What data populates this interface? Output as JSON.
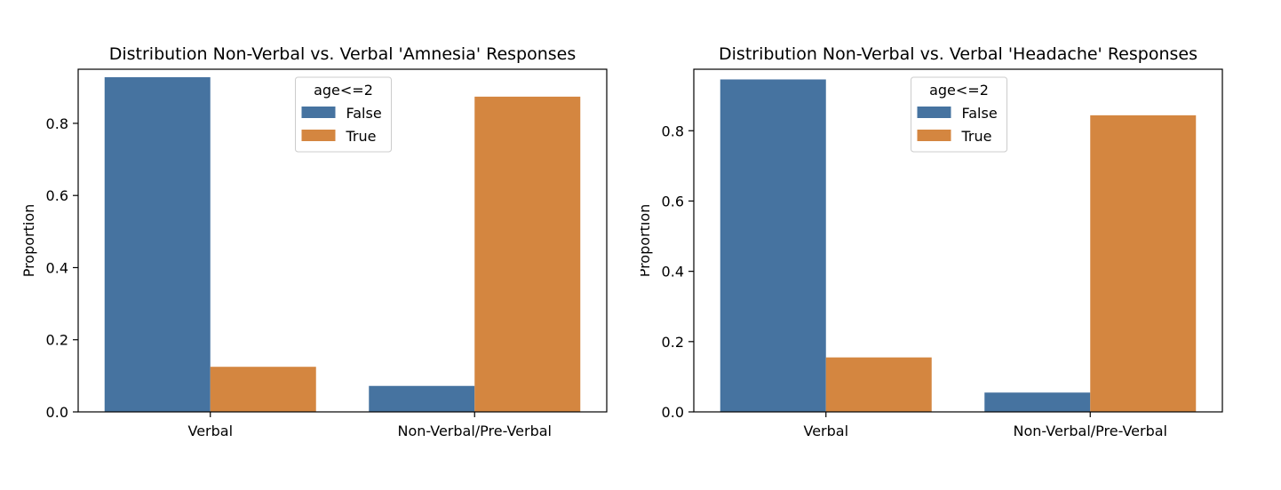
{
  "colors": {
    "false": "#4673a0",
    "true": "#d48640"
  },
  "chart_data": [
    {
      "type": "bar",
      "title": "Distribution Non-Verbal vs. Verbal 'Amnesia' Responses",
      "xlabel": "",
      "ylabel": "Proportion",
      "ylim": [
        0,
        0.95
      ],
      "yticks": [
        "0.0",
        "0.2",
        "0.4",
        "0.6",
        "0.8"
      ],
      "categories": [
        "Verbal",
        "Non-Verbal/Pre-Verbal"
      ],
      "legend": {
        "title": "age<=2",
        "placement": "upper-center"
      },
      "series": [
        {
          "name": "False",
          "values": [
            0.928,
            0.072
          ]
        },
        {
          "name": "True",
          "values": [
            0.125,
            0.874
          ]
        }
      ]
    },
    {
      "type": "bar",
      "title": "Distribution Non-Verbal vs. Verbal 'Headache' Responses",
      "xlabel": "",
      "ylabel": "Proportion",
      "ylim": [
        0,
        0.975
      ],
      "yticks": [
        "0.0",
        "0.2",
        "0.4",
        "0.6",
        "0.8"
      ],
      "categories": [
        "Verbal",
        "Non-Verbal/Pre-Verbal"
      ],
      "legend": {
        "title": "age<=2",
        "placement": "upper-center"
      },
      "series": [
        {
          "name": "False",
          "values": [
            0.946,
            0.055
          ]
        },
        {
          "name": "True",
          "values": [
            0.155,
            0.844
          ]
        }
      ]
    }
  ]
}
